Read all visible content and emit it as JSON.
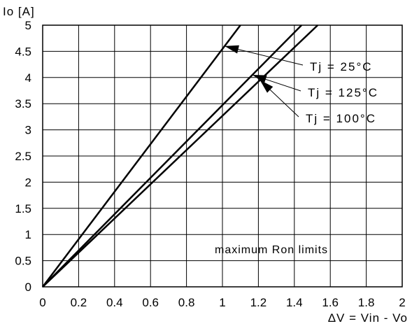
{
  "chart_data": {
    "type": "line",
    "title": "",
    "xlabel": "ΔV = Vin - Vo",
    "ylabel": "Io [A]",
    "xlim": [
      0,
      2
    ],
    "ylim": [
      0,
      5
    ],
    "x_ticks": [
      "0",
      "0.2",
      "0.4",
      "0.6",
      "0.8",
      "1",
      "1.2",
      "1.4",
      "1.6",
      "1.8",
      "2"
    ],
    "y_ticks": [
      "0",
      "0.5",
      "1",
      "1.5",
      "2",
      "2.5",
      "3",
      "3.5",
      "4",
      "4.5",
      "5"
    ],
    "grid": true,
    "series": [
      {
        "name": "Tj = 25°C",
        "x": [
          0,
          1.1
        ],
        "y": [
          0,
          5
        ]
      },
      {
        "name": "Tj = 125°C",
        "x": [
          0,
          1.44
        ],
        "y": [
          0,
          5
        ]
      },
      {
        "name": "Tj = 100°C",
        "x": [
          0,
          1.53
        ],
        "y": [
          0,
          5
        ]
      }
    ],
    "legend_placement": "right, with arrows pointing to each line",
    "annotation": "maximum Ron limits",
    "line_color": "#000000"
  }
}
